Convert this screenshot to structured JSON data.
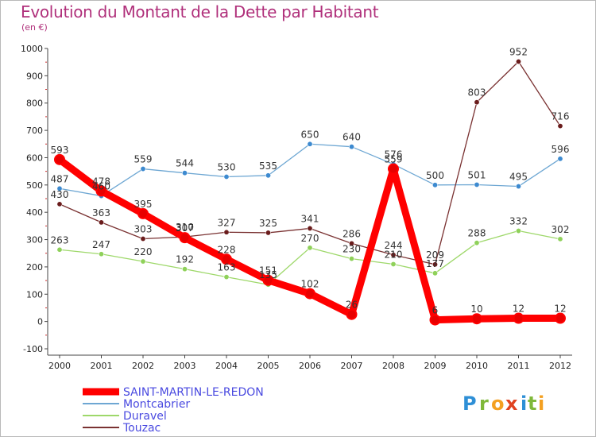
{
  "header": {
    "title": "Evolution du Montant de la Dette par Habitant",
    "subtitle": "(en €)"
  },
  "brand": {
    "name": "Proxiti",
    "letters": [
      "P",
      "r",
      "o",
      "x",
      "i",
      "t",
      "i"
    ],
    "colors": [
      "#2e8fd6",
      "#7fb83a",
      "#f4a021",
      "#e0421f",
      "#2e8fd6",
      "#7fb83a",
      "#f4a021"
    ]
  },
  "chart_data": {
    "type": "line",
    "title": "Evolution du Montant de la Dette par Habitant",
    "subtitle": "(en €)",
    "x": [
      "2000",
      "2001",
      "2002",
      "2003",
      "2004",
      "2005",
      "2006",
      "2007",
      "2008",
      "2009",
      "2010",
      "2011",
      "2012"
    ],
    "ylim": [
      -100,
      1000
    ],
    "yticks": [
      -100,
      0,
      100,
      200,
      300,
      400,
      500,
      600,
      700,
      800,
      900,
      1000
    ],
    "grid": false,
    "legend_position": "bottom-left",
    "series": [
      {
        "name": "SAINT-MARTIN-LE-REDON",
        "color": "#ff0000",
        "marker_color": "#e80000",
        "label_color": "#4040dd",
        "bold": true,
        "values": [
          593,
          478,
          395,
          307,
          228,
          151,
          102,
          26,
          559,
          6,
          10,
          12,
          12
        ],
        "labels": [
          "593",
          "478",
          "395",
          "307",
          "228",
          "151",
          "102",
          "26",
          "559",
          "6",
          "10",
          "12",
          "12"
        ]
      },
      {
        "name": "Montcabrier",
        "color": "#6ea7d3",
        "marker_color": "#3d8ad0",
        "label_color": "#4040dd",
        "bold": false,
        "values": [
          487,
          460,
          559,
          544,
          530,
          535,
          650,
          640,
          576,
          500,
          501,
          495,
          596
        ],
        "labels": [
          "487",
          "460",
          "559",
          "544",
          "530",
          "535",
          "650",
          "640",
          "576",
          "500",
          "501",
          "495",
          "596"
        ]
      },
      {
        "name": "Duravel",
        "color": "#9ed86a",
        "marker_color": "#8fd15a",
        "label_color": "#4040dd",
        "bold": false,
        "values": [
          263,
          247,
          220,
          192,
          163,
          135,
          270,
          230,
          210,
          177,
          288,
          332,
          302
        ],
        "labels": [
          "263",
          "247",
          "220",
          "192",
          "163",
          "135",
          "270",
          "230",
          "210",
          "177",
          "288",
          "332",
          "302"
        ]
      },
      {
        "name": "Touzac",
        "color": "#7a3232",
        "marker_color": "#6a1c1c",
        "label_color": "#4040dd",
        "bold": false,
        "values": [
          430,
          363,
          303,
          310,
          327,
          325,
          341,
          286,
          244,
          209,
          803,
          952,
          716
        ],
        "labels": [
          "430",
          "363",
          "303",
          "310",
          "327",
          "325",
          "341",
          "286",
          "244",
          "209",
          "803",
          "952",
          "716"
        ]
      }
    ]
  }
}
